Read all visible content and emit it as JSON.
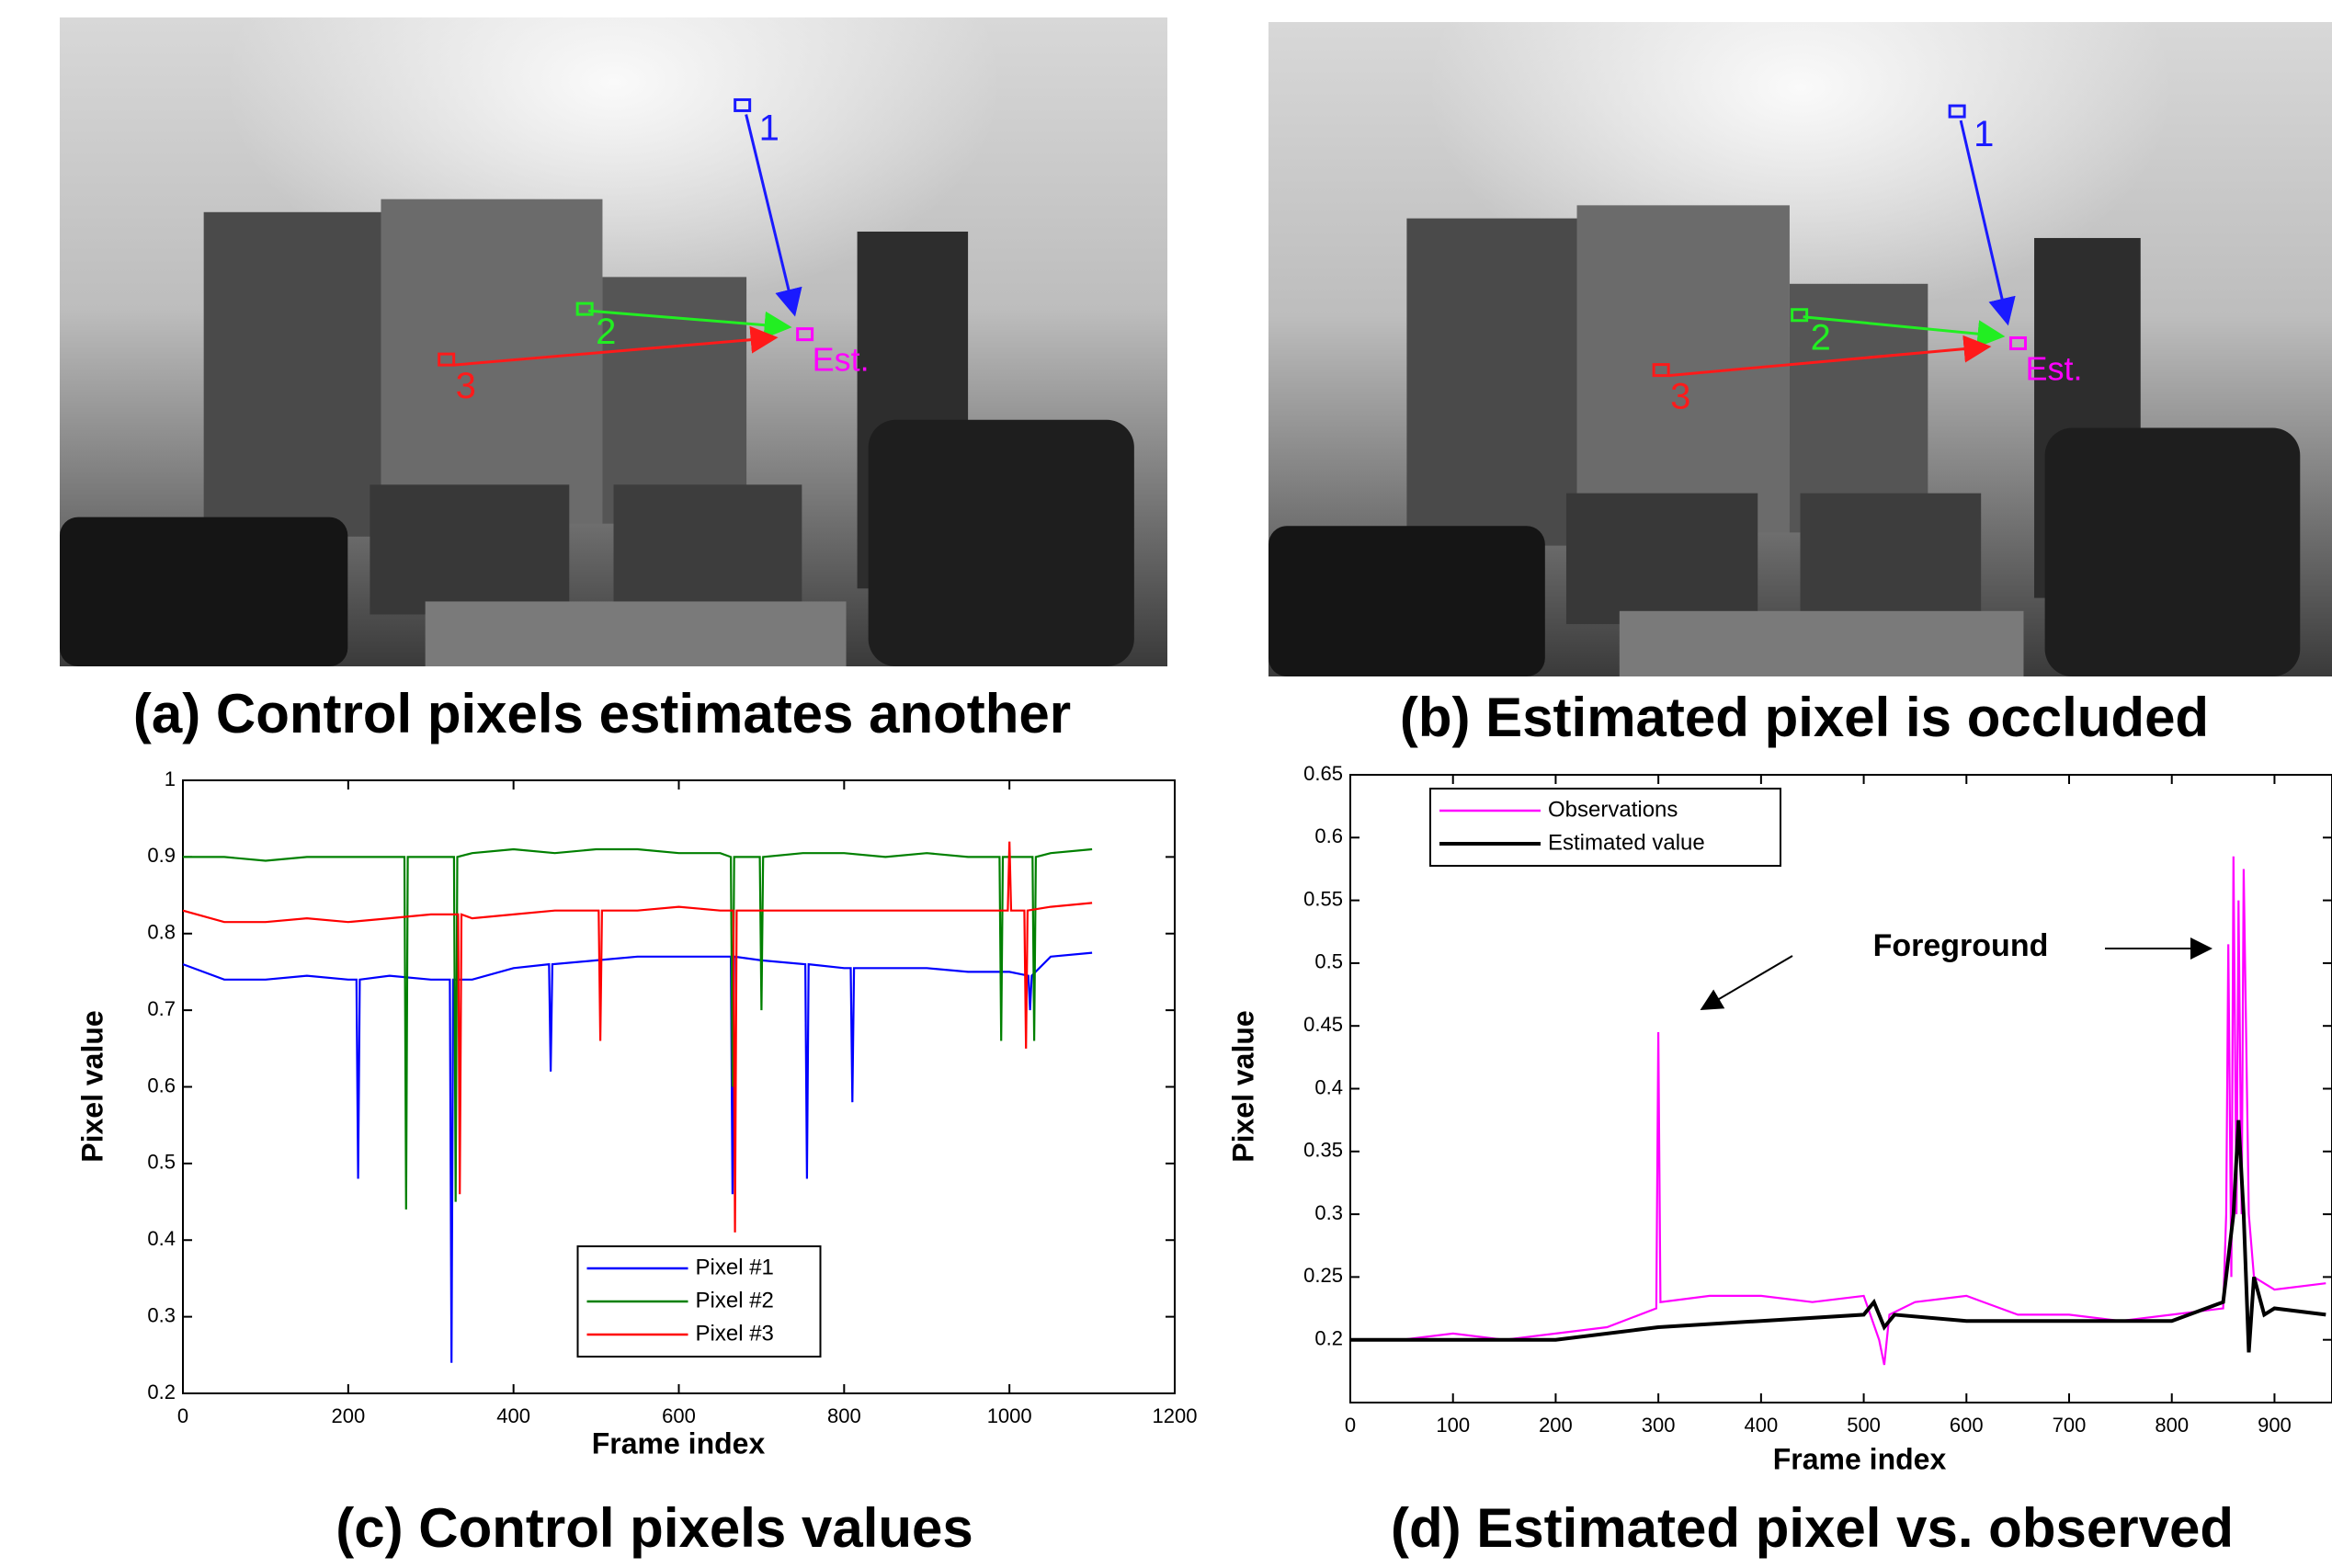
{
  "photos": [
    {
      "caption": "(a) Control pixels estimates another",
      "labels": [
        "1",
        "2",
        "3",
        "Est."
      ]
    },
    {
      "caption": "(b) Estimated pixel is occluded",
      "labels": [
        "1",
        "2",
        "3",
        "Est."
      ]
    }
  ],
  "chart_data": [
    {
      "type": "line",
      "title": "(c) Control pixels values",
      "x_label": "Frame index",
      "y_label": "Pixel value",
      "xlim": [
        0,
        1200
      ],
      "xticks": [
        0,
        200,
        400,
        600,
        800,
        1000,
        1200
      ],
      "ylim": [
        0.2,
        1
      ],
      "yticks": [
        0.2,
        0.3,
        0.4,
        0.5,
        0.6,
        0.7,
        0.8,
        0.9,
        1
      ],
      "grid": false,
      "legend": "lower center",
      "series": [
        {
          "name": "Pixel #1",
          "color": "#0000ff",
          "x": [
            0,
            50,
            100,
            150,
            200,
            210,
            212,
            214,
            250,
            300,
            323,
            325,
            327,
            350,
            400,
            443,
            445,
            447,
            500,
            550,
            600,
            650,
            663,
            665,
            667,
            700,
            753,
            755,
            757,
            800,
            808,
            810,
            812,
            850,
            900,
            950,
            1000,
            1023,
            1025,
            1027,
            1050,
            1100
          ],
          "values": [
            0.76,
            0.74,
            0.74,
            0.745,
            0.74,
            0.74,
            0.48,
            0.74,
            0.745,
            0.74,
            0.74,
            0.24,
            0.74,
            0.74,
            0.755,
            0.76,
            0.62,
            0.76,
            0.765,
            0.77,
            0.77,
            0.77,
            0.77,
            0.46,
            0.77,
            0.765,
            0.76,
            0.48,
            0.76,
            0.755,
            0.755,
            0.58,
            0.755,
            0.755,
            0.755,
            0.75,
            0.75,
            0.745,
            0.7,
            0.745,
            0.77,
            0.775
          ]
        },
        {
          "name": "Pixel #2",
          "color": "#008000",
          "x": [
            0,
            50,
            100,
            150,
            200,
            250,
            268,
            270,
            272,
            300,
            328,
            330,
            332,
            350,
            400,
            450,
            500,
            550,
            600,
            650,
            663,
            665,
            667,
            698,
            700,
            702,
            750,
            800,
            850,
            900,
            950,
            988,
            990,
            992,
            1028,
            1030,
            1032,
            1050,
            1100
          ],
          "values": [
            0.9,
            0.9,
            0.895,
            0.9,
            0.9,
            0.9,
            0.9,
            0.44,
            0.9,
            0.9,
            0.9,
            0.45,
            0.9,
            0.905,
            0.91,
            0.905,
            0.91,
            0.91,
            0.905,
            0.905,
            0.9,
            0.6,
            0.9,
            0.9,
            0.7,
            0.9,
            0.905,
            0.905,
            0.9,
            0.905,
            0.9,
            0.9,
            0.66,
            0.9,
            0.9,
            0.66,
            0.9,
            0.905,
            0.91
          ]
        },
        {
          "name": "Pixel #3",
          "color": "#ff0000",
          "x": [
            0,
            50,
            100,
            150,
            200,
            250,
            300,
            333,
            335,
            337,
            350,
            400,
            450,
            503,
            505,
            507,
            550,
            600,
            650,
            666,
            668,
            670,
            700,
            750,
            800,
            850,
            900,
            950,
            998,
            1000,
            1002,
            1018,
            1020,
            1022,
            1050,
            1100
          ],
          "values": [
            0.83,
            0.815,
            0.815,
            0.82,
            0.815,
            0.82,
            0.825,
            0.825,
            0.46,
            0.825,
            0.82,
            0.825,
            0.83,
            0.83,
            0.66,
            0.83,
            0.83,
            0.835,
            0.83,
            0.83,
            0.41,
            0.83,
            0.83,
            0.83,
            0.83,
            0.83,
            0.83,
            0.83,
            0.83,
            0.92,
            0.83,
            0.83,
            0.65,
            0.83,
            0.835,
            0.84
          ]
        }
      ]
    },
    {
      "type": "line",
      "title": "(d) Estimated pixel vs. observed",
      "x_label": "Frame index",
      "y_label": "Pixel value",
      "annotation": "Foreground",
      "xlim": [
        0,
        956
      ],
      "xticks": [
        0,
        100,
        200,
        300,
        400,
        500,
        600,
        700,
        800,
        900
      ],
      "ylim": [
        0.15,
        0.65
      ],
      "yticks": [
        0.2,
        0.25,
        0.3,
        0.35,
        0.4,
        0.45,
        0.5,
        0.55,
        0.6,
        0.65
      ],
      "grid": false,
      "legend": "upper left",
      "series": [
        {
          "name": "Observations",
          "color": "#ff00ff",
          "x": [
            0,
            50,
            100,
            150,
            200,
            250,
            298,
            300,
            302,
            350,
            400,
            450,
            500,
            515,
            520,
            525,
            550,
            600,
            650,
            700,
            750,
            800,
            850,
            853,
            855,
            858,
            860,
            863,
            865,
            868,
            870,
            875,
            880,
            900,
            950
          ],
          "values": [
            0.2,
            0.2,
            0.205,
            0.2,
            0.205,
            0.21,
            0.225,
            0.445,
            0.23,
            0.235,
            0.235,
            0.23,
            0.235,
            0.2,
            0.18,
            0.22,
            0.23,
            0.235,
            0.22,
            0.22,
            0.215,
            0.22,
            0.225,
            0.3,
            0.515,
            0.25,
            0.585,
            0.3,
            0.55,
            0.3,
            0.575,
            0.3,
            0.25,
            0.24,
            0.245
          ]
        },
        {
          "name": "Estimated value",
          "color": "#000000",
          "x": [
            0,
            100,
            200,
            300,
            400,
            500,
            510,
            520,
            530,
            600,
            700,
            800,
            850,
            860,
            865,
            870,
            875,
            880,
            890,
            900,
            950
          ],
          "values": [
            0.2,
            0.2,
            0.2,
            0.21,
            0.215,
            0.22,
            0.23,
            0.21,
            0.22,
            0.215,
            0.215,
            0.215,
            0.23,
            0.3,
            0.375,
            0.3,
            0.19,
            0.25,
            0.22,
            0.225,
            0.22
          ]
        }
      ]
    }
  ]
}
